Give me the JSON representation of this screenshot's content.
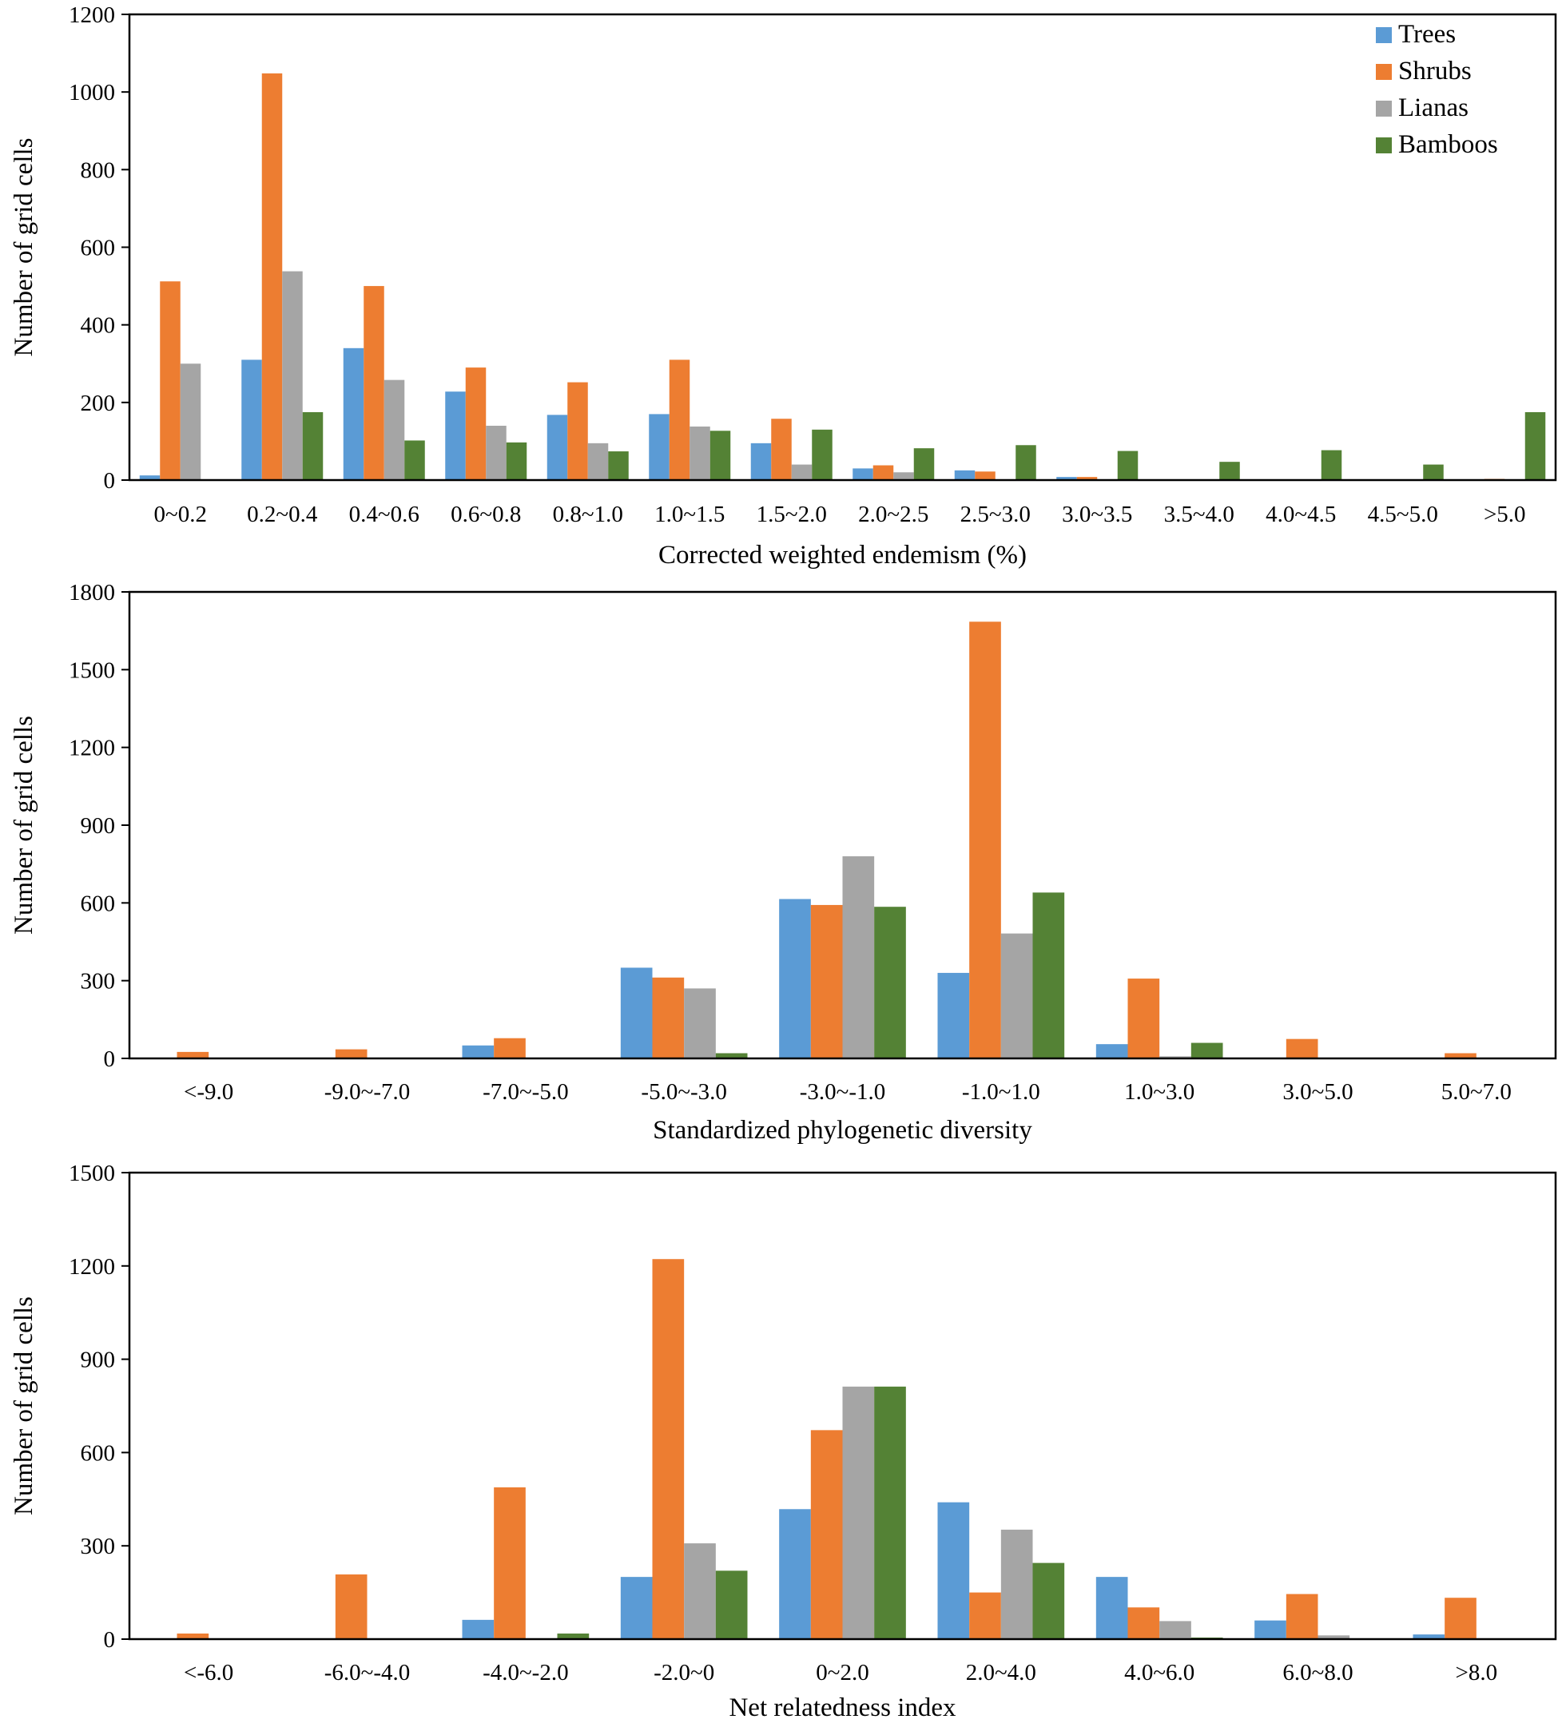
{
  "colors": {
    "Trees": "#5B9BD5",
    "Shrubs": "#ED7D31",
    "Lianas": "#A5A5A5",
    "Bamboos": "#548235"
  },
  "legend": [
    "Trees",
    "Shrubs",
    "Lianas",
    "Bamboos"
  ],
  "chart_data": [
    {
      "type": "bar",
      "title": "",
      "xlabel": "Corrected weighted endemism (%)",
      "ylabel": "Number of grid cells",
      "ylim": [
        0,
        1200
      ],
      "yticks": [
        0,
        200,
        400,
        600,
        800,
        1000,
        1200
      ],
      "legend_position": "top-right",
      "categories": [
        "0~0.2",
        "0.2~0.4",
        "0.4~0.6",
        "0.6~0.8",
        "0.8~1.0",
        "1.0~1.5",
        "1.5~2.0",
        "2.0~2.5",
        "2.5~3.0",
        "3.0~3.5",
        "3.5~4.0",
        "4.0~4.5",
        "4.5~5.0",
        ">5.0"
      ],
      "series": [
        {
          "name": "Trees",
          "values": [
            12,
            310,
            340,
            228,
            168,
            170,
            95,
            30,
            25,
            8,
            0,
            0,
            2,
            0
          ]
        },
        {
          "name": "Shrubs",
          "values": [
            512,
            1048,
            500,
            290,
            252,
            310,
            158,
            38,
            22,
            8,
            0,
            0,
            0,
            3
          ]
        },
        {
          "name": "Lianas",
          "values": [
            300,
            538,
            258,
            140,
            95,
            138,
            40,
            20,
            0,
            0,
            0,
            0,
            0,
            0
          ]
        },
        {
          "name": "Bamboos",
          "values": [
            0,
            175,
            102,
            97,
            74,
            127,
            130,
            82,
            90,
            75,
            47,
            77,
            40,
            175
          ]
        }
      ]
    },
    {
      "type": "bar",
      "title": "",
      "xlabel": "Standardized phylogenetic diversity",
      "ylabel": "Number of grid cells",
      "ylim": [
        0,
        1800
      ],
      "yticks": [
        0,
        300,
        600,
        900,
        1200,
        1500,
        1800
      ],
      "categories": [
        "<-9.0",
        "-9.0~-7.0",
        "-7.0~-5.0",
        "-5.0~-3.0",
        "-3.0~-1.0",
        "-1.0~1.0",
        "1.0~3.0",
        "3.0~5.0",
        "5.0~7.0"
      ],
      "series": [
        {
          "name": "Trees",
          "values": [
            0,
            0,
            50,
            350,
            615,
            330,
            55,
            0,
            0
          ]
        },
        {
          "name": "Shrubs",
          "values": [
            25,
            35,
            78,
            312,
            592,
            1685,
            308,
            75,
            20
          ]
        },
        {
          "name": "Lianas",
          "values": [
            0,
            0,
            0,
            270,
            780,
            482,
            8,
            0,
            0
          ]
        },
        {
          "name": "Bamboos",
          "values": [
            0,
            0,
            0,
            20,
            585,
            640,
            60,
            0,
            0
          ]
        }
      ]
    },
    {
      "type": "bar",
      "title": "",
      "xlabel": "Net relatedness index",
      "ylabel": "Number of grid cells",
      "ylim": [
        0,
        1500
      ],
      "yticks": [
        0,
        300,
        600,
        900,
        1200,
        1500
      ],
      "categories": [
        "<-6.0",
        "-6.0~-4.0",
        "-4.0~-2.0",
        "-2.0~0",
        "0~2.0",
        "2.0~4.0",
        "4.0~6.0",
        "6.0~8.0",
        ">8.0"
      ],
      "series": [
        {
          "name": "Trees",
          "values": [
            0,
            0,
            62,
            200,
            418,
            440,
            200,
            60,
            15
          ]
        },
        {
          "name": "Shrubs",
          "values": [
            18,
            208,
            488,
            1222,
            672,
            150,
            102,
            145,
            133
          ]
        },
        {
          "name": "Lianas",
          "values": [
            0,
            0,
            0,
            308,
            812,
            352,
            58,
            12,
            0
          ]
        },
        {
          "name": "Bamboos",
          "values": [
            0,
            0,
            18,
            220,
            812,
            245,
            5,
            0,
            0
          ]
        }
      ]
    }
  ]
}
